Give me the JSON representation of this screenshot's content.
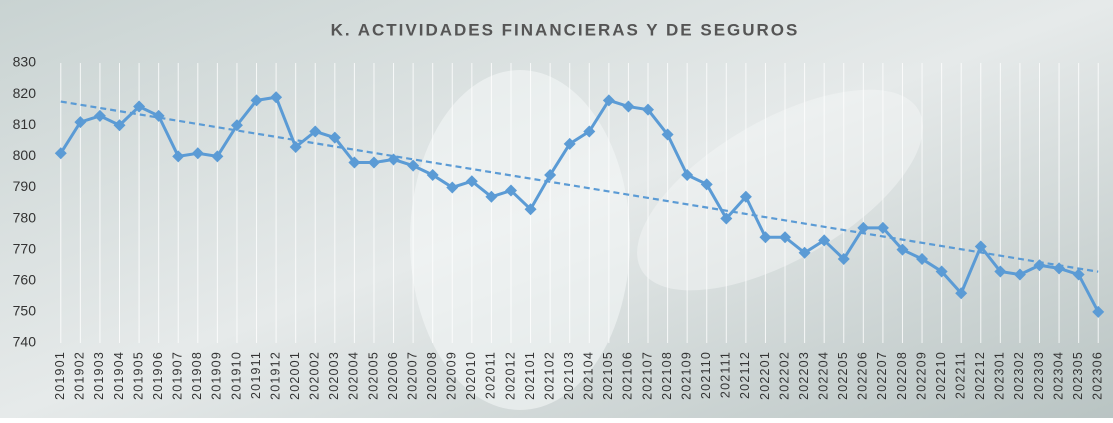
{
  "chart_data": {
    "type": "line",
    "title": "K. ACTIVIDADES FINANCIERAS Y DE SEGUROS",
    "categories": [
      "201901",
      "201902",
      "201903",
      "201904",
      "201905",
      "201906",
      "201907",
      "201908",
      "201909",
      "201910",
      "201911",
      "201912",
      "202001",
      "202002",
      "202003",
      "202004",
      "202005",
      "202006",
      "202007",
      "202008",
      "202009",
      "202010",
      "202011",
      "202012",
      "202101",
      "202102",
      "202103",
      "202104",
      "202105",
      "202106",
      "202107",
      "202108",
      "202109",
      "202110",
      "202111",
      "202112",
      "202201",
      "202202",
      "202203",
      "202204",
      "202205",
      "202206",
      "202207",
      "202208",
      "202209",
      "202210",
      "202211",
      "202212",
      "202301",
      "202302",
      "202303",
      "202304",
      "202305",
      "202306"
    ],
    "series": [
      {
        "color": "#5b9bd5",
        "values": [
          801,
          811,
          813,
          810,
          816,
          813,
          800,
          801,
          800,
          810,
          818,
          819,
          803,
          808,
          806,
          798,
          798,
          799,
          797,
          794,
          790,
          792,
          787,
          789,
          783,
          794,
          804,
          808,
          818,
          816,
          815,
          807,
          794,
          791,
          780,
          787,
          774,
          774,
          769,
          773,
          767,
          777,
          777,
          770,
          767,
          763,
          756,
          771,
          763,
          762,
          765,
          764,
          762,
          750
        ]
      }
    ],
    "ylim": [
      740,
      830
    ],
    "yticks": [
      740,
      750,
      760,
      770,
      780,
      790,
      800,
      810,
      820,
      830
    ],
    "grid": "x",
    "trendline": "linear"
  }
}
